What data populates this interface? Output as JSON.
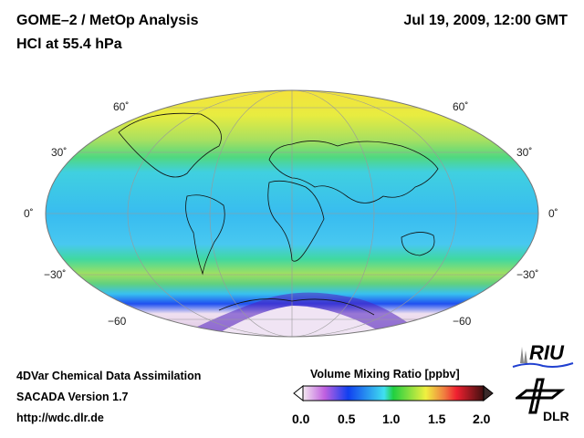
{
  "header": {
    "title": "GOME–2 / MetOp Analysis",
    "subtitle": "HCl at 55.4 hPa",
    "datetime": "Jul 19, 2009, 12:00 GMT"
  },
  "map": {
    "lat_labels_left": [
      "60˚",
      "30˚",
      "0˚",
      "−30˚",
      "−60"
    ],
    "lat_labels_right": [
      "60˚",
      "30˚",
      "0˚",
      "−30˚",
      "−60"
    ]
  },
  "colorbar": {
    "title": "Volume Mixing Ratio [ppbv]",
    "ticks": [
      "0.0",
      "0.5",
      "1.0",
      "1.5",
      "2.0"
    ],
    "range": [
      0.0,
      2.0
    ]
  },
  "footer": {
    "line1": "4DVar Chemical Data Assimilation",
    "line2": "SACADA Version 1.7",
    "line3": "http://wdc.dlr.de"
  },
  "logos": {
    "riu": "RIU",
    "dlr": "DLR"
  }
}
